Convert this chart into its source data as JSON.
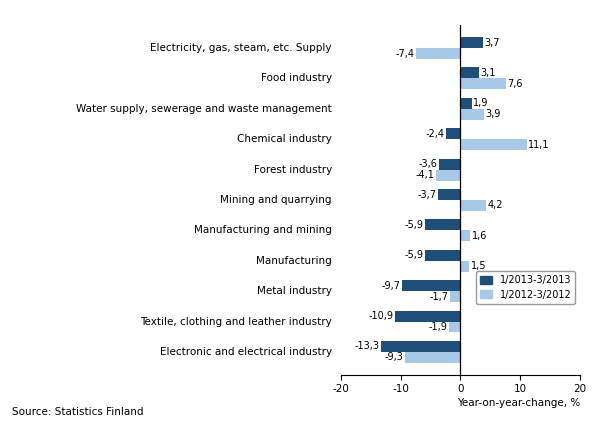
{
  "categories": [
    "Electronic and electrical industry",
    "Textile, clothing and leather industry",
    "Metal industry",
    "Manufacturing",
    "Manufacturing and mining",
    "Mining and quarrying",
    "Forest industry",
    "Chemical industry",
    "Water supply, sewerage and waste management",
    "Food industry",
    "Electricity, gas, steam, etc. Supply"
  ],
  "series_2013": [
    -13.3,
    -10.9,
    -9.7,
    -5.9,
    -5.9,
    -3.7,
    -3.6,
    -2.4,
    1.9,
    3.1,
    3.7
  ],
  "series_2012": [
    -9.3,
    -1.9,
    -1.7,
    1.5,
    1.6,
    4.2,
    -4.1,
    11.1,
    3.9,
    7.6,
    -7.4
  ],
  "color_2013": "#1F4E79",
  "color_2012": "#A8C8E8",
  "xlabel": "Year-on-year-change, %",
  "source": "Source: Statistics Finland",
  "legend_2013": "1/2013-3/2013",
  "legend_2012": "1/2012-3/2012",
  "xlim": [
    -20,
    20
  ],
  "xticks": [
    -20,
    -10,
    0,
    10,
    20
  ],
  "bar_height": 0.36,
  "label_fontsize": 7.0,
  "tick_fontsize": 7.5
}
